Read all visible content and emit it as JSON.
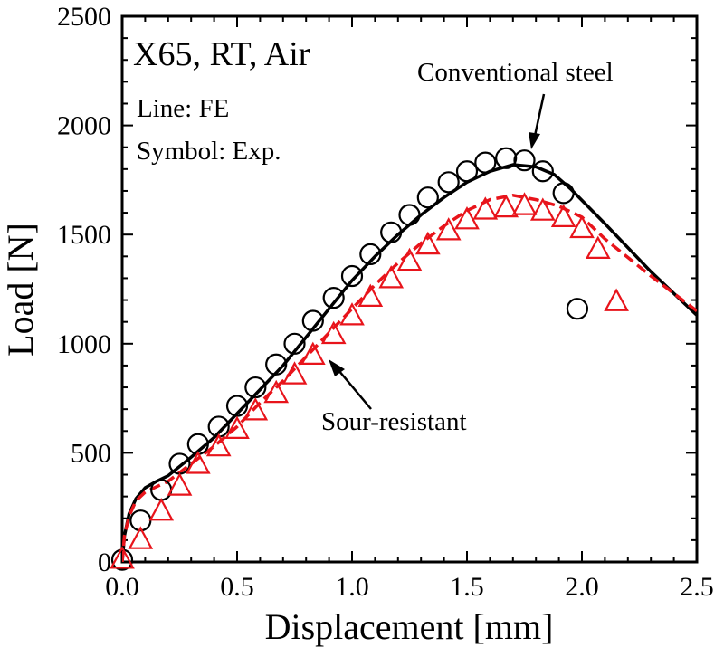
{
  "chart_data": {
    "type": "scatter",
    "title": "X65, RT, Air",
    "xlabel": "Displacement [mm]",
    "ylabel": "Load [N]",
    "xlim": [
      0,
      2.5
    ],
    "ylim": [
      0,
      2500
    ],
    "x_ticks": [
      "0.0",
      "0.5",
      "1.0",
      "1.5",
      "2.0",
      "2.5"
    ],
    "y_ticks": [
      "0",
      "500",
      "1000",
      "1500",
      "2000",
      "2500"
    ],
    "grid": false,
    "annotations": {
      "line_note": "Line: FE",
      "symbol_note": "Symbol: Exp.",
      "conventional_label": "Conventional steel",
      "sour_label": "Sour-resistant"
    },
    "colors": {
      "conventional": "#000000",
      "sour": "#e8141b"
    },
    "series": [
      {
        "name": "Conventional steel",
        "kind": "line",
        "style": "solid",
        "color": "#000000",
        "points": [
          [
            0,
            0
          ],
          [
            0.01,
            120
          ],
          [
            0.03,
            220
          ],
          [
            0.06,
            290
          ],
          [
            0.1,
            340
          ],
          [
            0.15,
            370
          ],
          [
            0.2,
            395
          ],
          [
            0.3,
            480
          ],
          [
            0.4,
            570
          ],
          [
            0.5,
            680
          ],
          [
            0.6,
            790
          ],
          [
            0.7,
            900
          ],
          [
            0.8,
            1030
          ],
          [
            0.9,
            1160
          ],
          [
            1.0,
            1290
          ],
          [
            1.1,
            1400
          ],
          [
            1.2,
            1500
          ],
          [
            1.3,
            1590
          ],
          [
            1.4,
            1670
          ],
          [
            1.5,
            1740
          ],
          [
            1.6,
            1790
          ],
          [
            1.7,
            1820
          ],
          [
            1.8,
            1810
          ],
          [
            1.88,
            1775
          ],
          [
            1.95,
            1710
          ],
          [
            2.1,
            1550
          ],
          [
            2.3,
            1330
          ],
          [
            2.5,
            1130
          ]
        ]
      },
      {
        "name": "Sour-resistant",
        "kind": "line",
        "style": "dashed",
        "color": "#e8141b",
        "points": [
          [
            0,
            0
          ],
          [
            0.01,
            120
          ],
          [
            0.03,
            210
          ],
          [
            0.06,
            280
          ],
          [
            0.1,
            320
          ],
          [
            0.15,
            345
          ],
          [
            0.2,
            370
          ],
          [
            0.3,
            450
          ],
          [
            0.4,
            530
          ],
          [
            0.5,
            620
          ],
          [
            0.6,
            730
          ],
          [
            0.7,
            830
          ],
          [
            0.8,
            940
          ],
          [
            0.9,
            1050
          ],
          [
            1.0,
            1160
          ],
          [
            1.1,
            1270
          ],
          [
            1.2,
            1370
          ],
          [
            1.3,
            1460
          ],
          [
            1.4,
            1540
          ],
          [
            1.5,
            1610
          ],
          [
            1.6,
            1660
          ],
          [
            1.7,
            1680
          ],
          [
            1.8,
            1660
          ],
          [
            1.9,
            1630
          ],
          [
            2.0,
            1580
          ],
          [
            2.1,
            1480
          ],
          [
            2.3,
            1310
          ],
          [
            2.5,
            1150
          ]
        ]
      },
      {
        "name": "Conventional steel",
        "kind": "scatter",
        "marker": "circle",
        "color": "#000000",
        "points": [
          [
            0.0,
            10
          ],
          [
            0.08,
            190
          ],
          [
            0.17,
            330
          ],
          [
            0.25,
            450
          ],
          [
            0.33,
            540
          ],
          [
            0.42,
            620
          ],
          [
            0.5,
            715
          ],
          [
            0.58,
            800
          ],
          [
            0.67,
            905
          ],
          [
            0.75,
            1000
          ],
          [
            0.83,
            1105
          ],
          [
            0.92,
            1210
          ],
          [
            1.0,
            1310
          ],
          [
            1.08,
            1410
          ],
          [
            1.17,
            1510
          ],
          [
            1.25,
            1590
          ],
          [
            1.33,
            1670
          ],
          [
            1.42,
            1740
          ],
          [
            1.5,
            1790
          ],
          [
            1.58,
            1830
          ],
          [
            1.67,
            1850
          ],
          [
            1.75,
            1840
          ],
          [
            1.83,
            1790
          ],
          [
            1.92,
            1690
          ],
          [
            1.98,
            1160
          ]
        ]
      },
      {
        "name": "Sour-resistant",
        "kind": "scatter",
        "marker": "triangle",
        "color": "#e8141b",
        "points": [
          [
            0.0,
            10
          ],
          [
            0.08,
            100
          ],
          [
            0.17,
            230
          ],
          [
            0.25,
            345
          ],
          [
            0.33,
            445
          ],
          [
            0.42,
            525
          ],
          [
            0.5,
            605
          ],
          [
            0.58,
            690
          ],
          [
            0.67,
            770
          ],
          [
            0.75,
            855
          ],
          [
            0.83,
            945
          ],
          [
            0.92,
            1040
          ],
          [
            1.0,
            1125
          ],
          [
            1.08,
            1210
          ],
          [
            1.17,
            1295
          ],
          [
            1.25,
            1375
          ],
          [
            1.33,
            1450
          ],
          [
            1.42,
            1515
          ],
          [
            1.5,
            1565
          ],
          [
            1.58,
            1610
          ],
          [
            1.67,
            1620
          ],
          [
            1.75,
            1630
          ],
          [
            1.83,
            1605
          ],
          [
            1.92,
            1575
          ],
          [
            2.0,
            1525
          ],
          [
            2.07,
            1430
          ],
          [
            2.15,
            1190
          ]
        ]
      }
    ]
  }
}
